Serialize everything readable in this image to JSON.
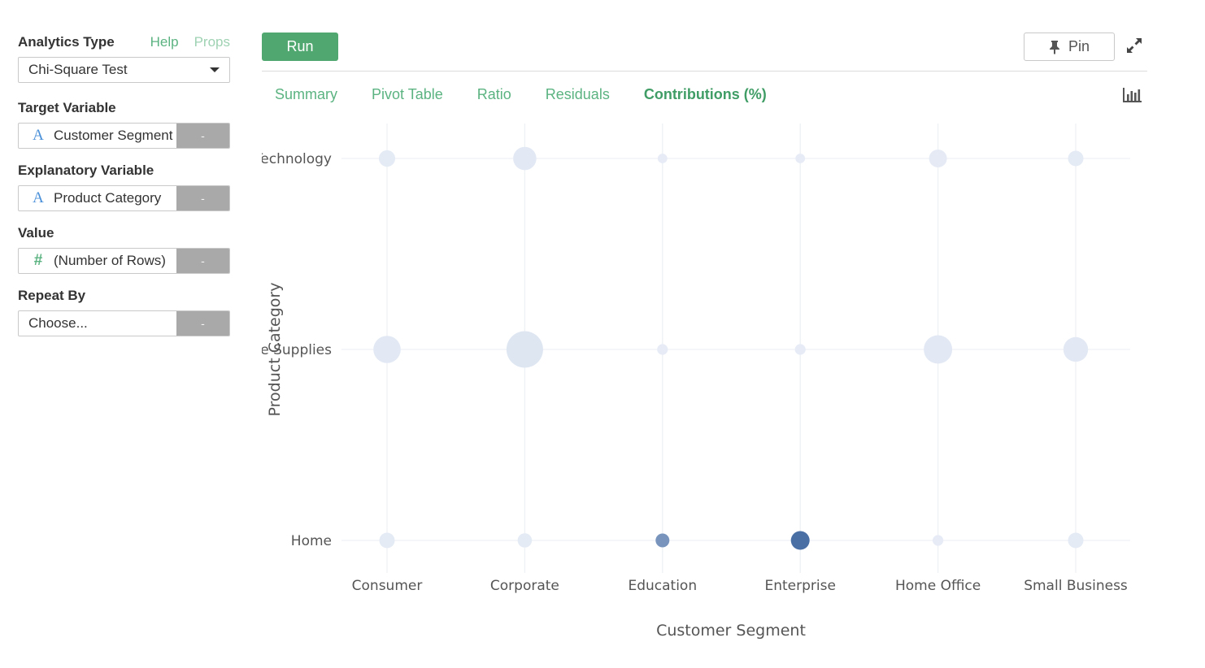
{
  "sidebar": {
    "analytics_type_label": "Analytics Type",
    "help_link": "Help",
    "props_link": "Props",
    "analytics_type_value": "Chi-Square Test",
    "target_variable_label": "Target Variable",
    "target_variable_value": "Customer Segment",
    "explanatory_variable_label": "Explanatory Variable",
    "explanatory_variable_value": "Product Category",
    "value_label": "Value",
    "value_value": "(Number of Rows)",
    "repeat_by_label": "Repeat By",
    "repeat_by_placeholder": "Choose...",
    "remove_label": "-",
    "string_type_glyph": "A",
    "number_type_glyph": "#"
  },
  "toolbar": {
    "run_label": "Run",
    "pin_label": "Pin"
  },
  "tabs": [
    {
      "label": "Summary",
      "active": false
    },
    {
      "label": "Pivot Table",
      "active": false
    },
    {
      "label": "Ratio",
      "active": false
    },
    {
      "label": "Residuals",
      "active": false
    },
    {
      "label": "Contributions (%)",
      "active": true
    }
  ],
  "icons": {
    "pin": "pin-icon",
    "expand": "expand-icon",
    "chart_type": "bar-chart-icon",
    "dropdown": "chevron-down-icon"
  },
  "colors": {
    "accent": "#50a870",
    "tab_text": "#5bb381",
    "bubble_scale": [
      "#eef2fa",
      "#4a6fa5"
    ]
  },
  "chart_data": {
    "type": "scatter",
    "xlabel": "Customer Segment",
    "ylabel": "Product Category",
    "x_categories": [
      "Consumer",
      "Corporate",
      "Education",
      "Enterprise",
      "Home Office",
      "Small Business"
    ],
    "y_categories": [
      "Technology",
      "Office Supplies",
      "Home"
    ],
    "y_tick_labels": [
      "Technology",
      "Office Supplies",
      "Home"
    ],
    "grid": true,
    "legend": "none",
    "points": [
      {
        "x": "Consumer",
        "y": "Technology",
        "value": 1.2
      },
      {
        "x": "Corporate",
        "y": "Technology",
        "value": 3.0
      },
      {
        "x": "Education",
        "y": "Technology",
        "value": 0.2
      },
      {
        "x": "Enterprise",
        "y": "Technology",
        "value": 0.2
      },
      {
        "x": "Home Office",
        "y": "Technology",
        "value": 1.5
      },
      {
        "x": "Small Business",
        "y": "Technology",
        "value": 1.0
      },
      {
        "x": "Consumer",
        "y": "Office Supplies",
        "value": 4.5
      },
      {
        "x": "Corporate",
        "y": "Office Supplies",
        "value": 9.0
      },
      {
        "x": "Education",
        "y": "Office Supplies",
        "value": 0.3
      },
      {
        "x": "Enterprise",
        "y": "Office Supplies",
        "value": 0.3
      },
      {
        "x": "Home Office",
        "y": "Office Supplies",
        "value": 5.0
      },
      {
        "x": "Small Business",
        "y": "Office Supplies",
        "value": 3.5
      },
      {
        "x": "Consumer",
        "y": "Home",
        "value": 1.0
      },
      {
        "x": "Corporate",
        "y": "Home",
        "value": 0.8
      },
      {
        "x": "Education",
        "y": "Home",
        "value": 20.0
      },
      {
        "x": "Enterprise",
        "y": "Home",
        "value": 30.0
      },
      {
        "x": "Home Office",
        "y": "Home",
        "value": 0.3
      },
      {
        "x": "Small Business",
        "y": "Home",
        "value": 1.0
      }
    ]
  }
}
